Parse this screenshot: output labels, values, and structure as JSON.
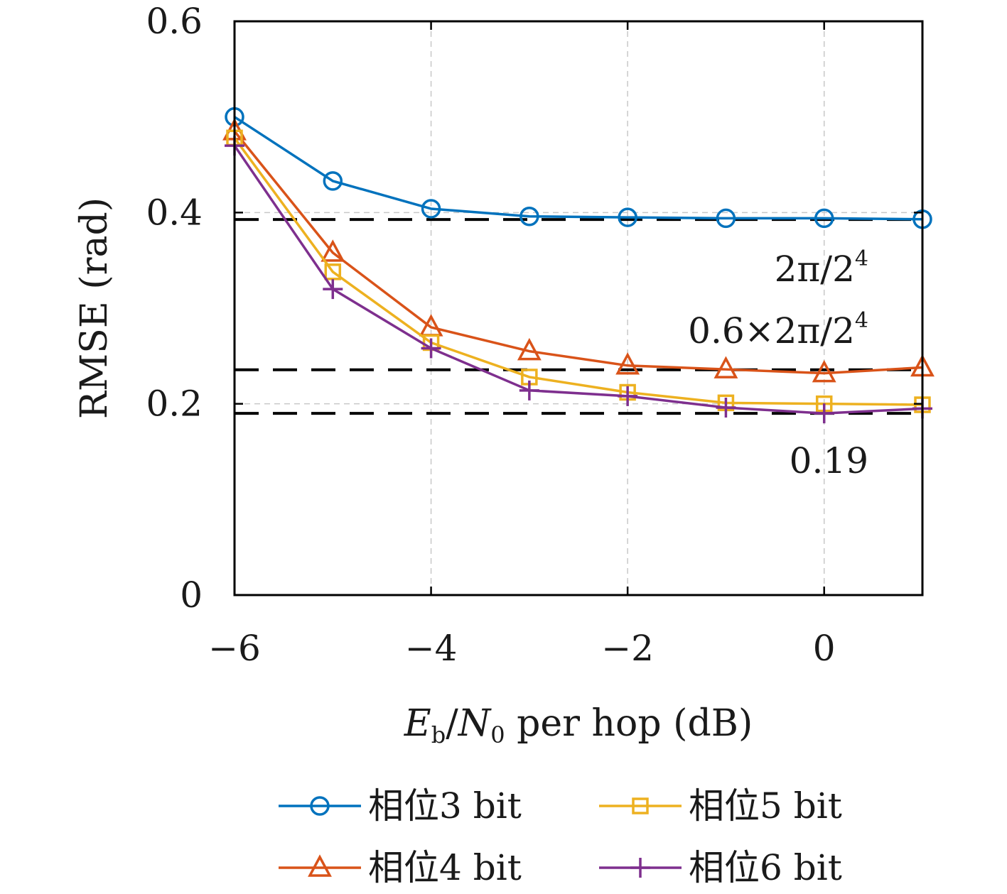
{
  "chart_data": {
    "type": "line",
    "xlabel": {
      "E": "E",
      "sub_b": "b",
      "slash": "/",
      "N": "N",
      "sub_0": "0",
      "rest": " per hop (dB)"
    },
    "ylabel": "RMSE (rad)",
    "xlim": [
      -6,
      1
    ],
    "ylim": [
      0,
      0.6
    ],
    "xticks": [
      -6,
      -4,
      -2,
      0
    ],
    "xtick_labels": [
      "−6",
      "−4",
      "−2",
      "0"
    ],
    "yticks": [
      0,
      0.2,
      0.4,
      0.6
    ],
    "ytick_labels": [
      "0",
      "0.2",
      "0.4",
      "0.6"
    ],
    "grid": true,
    "legend_position": "bottom",
    "x": [
      -6,
      -5,
      -4,
      -3,
      -2,
      -1,
      0,
      1
    ],
    "series": [
      {
        "name": "相位3 bit",
        "color": "#0072BD",
        "marker": "circle",
        "values": [
          0.5,
          0.433,
          0.404,
          0.396,
          0.395,
          0.394,
          0.394,
          0.393
        ]
      },
      {
        "name": "相位4 bit",
        "color": "#D95319",
        "marker": "triangle",
        "values": [
          0.485,
          0.358,
          0.28,
          0.255,
          0.24,
          0.236,
          0.232,
          0.238
        ]
      },
      {
        "name": "相位5 bit",
        "color": "#EDB120",
        "marker": "square",
        "values": [
          0.478,
          0.338,
          0.264,
          0.228,
          0.212,
          0.201,
          0.2,
          0.199
        ]
      },
      {
        "name": "相位6 bit",
        "color": "#7E2F8E",
        "marker": "plus",
        "values": [
          0.47,
          0.32,
          0.258,
          0.214,
          0.208,
          0.196,
          0.19,
          0.195
        ]
      }
    ],
    "reference_lines": [
      {
        "y": 0.3927,
        "label_main": "2π/2",
        "label_sup": "4"
      },
      {
        "y": 0.2356,
        "label_main": "0.6×2π/2",
        "label_sup": "4"
      },
      {
        "y": 0.19,
        "label_main": "0.19",
        "label_sup": ""
      }
    ]
  }
}
